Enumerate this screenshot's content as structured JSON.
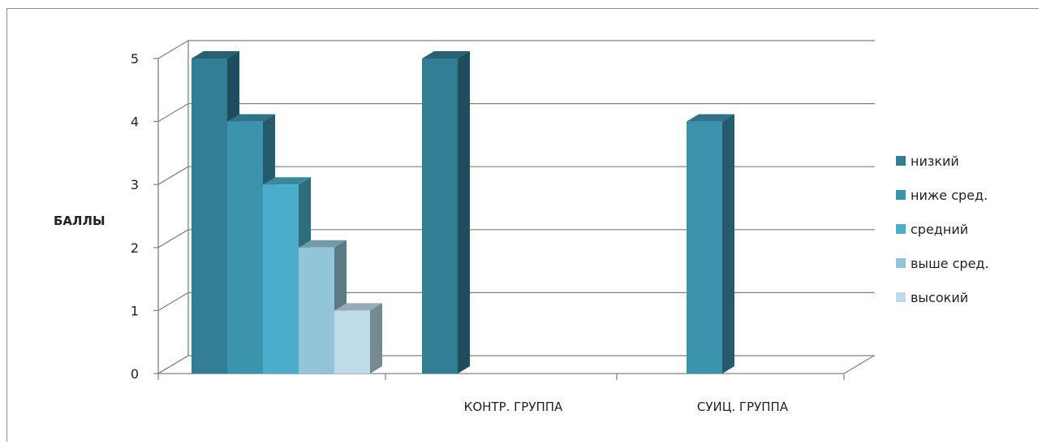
{
  "chart_data": {
    "type": "bar",
    "three_d": true,
    "title": "",
    "xlabel": "",
    "ylabel": "БАЛЛЫ",
    "ylim": [
      0,
      5
    ],
    "yticks": [
      0,
      1,
      2,
      3,
      4,
      5
    ],
    "grid": true,
    "legend_position": "right",
    "categories": [
      "",
      "КОНТР. ГРУППА",
      "СУИЦ. ГРУППА"
    ],
    "series": [
      {
        "name": "низкий",
        "color": "#317d93",
        "values": [
          5,
          5,
          null
        ]
      },
      {
        "name": "ниже сред.",
        "color": "#3b93ae",
        "values": [
          4,
          null,
          4
        ]
      },
      {
        "name": "средний",
        "color": "#4aaecb",
        "values": [
          3,
          null,
          null
        ]
      },
      {
        "name": "выше сред.",
        "color": "#93c5d8",
        "values": [
          2,
          null,
          null
        ]
      },
      {
        "name": "высокий",
        "color": "#bfdbe8",
        "values": [
          1,
          null,
          null
        ]
      }
    ]
  }
}
